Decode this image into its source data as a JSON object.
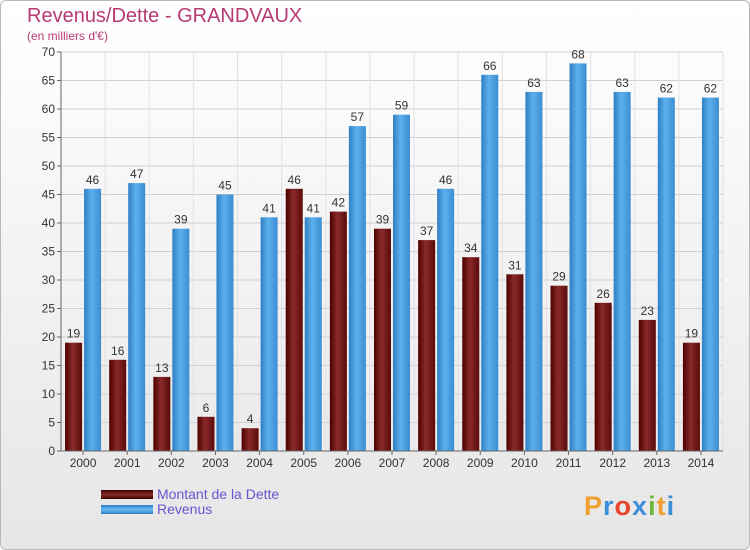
{
  "header": {
    "title": "Revenus/Dette - GRANDVAUX",
    "subtitle": "(en milliers d'€)"
  },
  "chart_data": {
    "type": "bar",
    "title": "Revenus/Dette - GRANDVAUX",
    "subtitle": "(en milliers d'€)",
    "xlabel": "",
    "ylabel": "",
    "categories": [
      "2000",
      "2001",
      "2002",
      "2003",
      "2004",
      "2005",
      "2006",
      "2007",
      "2008",
      "2009",
      "2010",
      "2011",
      "2012",
      "2013",
      "2014"
    ],
    "series": [
      {
        "name": "Montant de la Dette",
        "color": "#7a1e1e",
        "values": [
          19,
          16,
          13,
          6,
          4,
          46,
          42,
          39,
          37,
          34,
          31,
          29,
          26,
          23,
          19
        ]
      },
      {
        "name": "Revenus",
        "color": "#4da3e3",
        "values": [
          46,
          47,
          39,
          45,
          41,
          41,
          57,
          59,
          46,
          66,
          63,
          68,
          63,
          62,
          62
        ]
      }
    ],
    "ylim": [
      0,
      70
    ],
    "yticks": [
      0,
      5,
      10,
      15,
      20,
      25,
      30,
      35,
      40,
      45,
      50,
      55,
      60,
      65,
      70
    ],
    "grid": true,
    "legend_position": "bottom-left"
  },
  "legend": {
    "items": [
      {
        "label": "Montant de la Dette",
        "color": "#6b1414"
      },
      {
        "label": "Revenus",
        "color": "#4da3e3"
      }
    ]
  },
  "logo": {
    "letters": [
      "P",
      "r",
      "o",
      "x",
      "i",
      "t",
      "i"
    ],
    "colors": [
      "#f0a030",
      "#3f8fd8",
      "#e8452c",
      "#3f8fd8",
      "#6ab83a",
      "#f0a030",
      "#3f8fd8"
    ]
  }
}
